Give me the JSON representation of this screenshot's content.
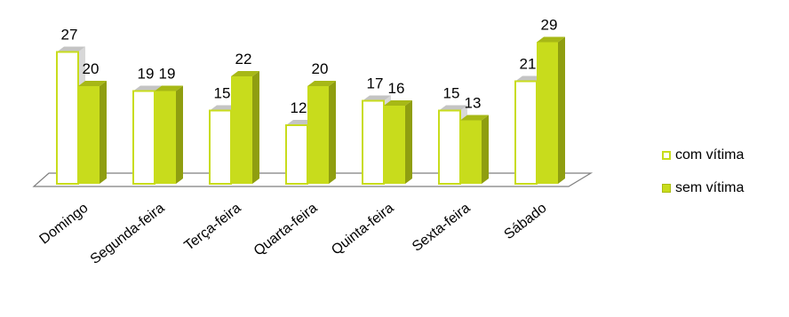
{
  "chart_data": {
    "type": "bar",
    "title": "",
    "xlabel": "",
    "ylabel": "",
    "ylim": [
      0,
      30
    ],
    "categories": [
      "Domingo",
      "Segunda-feira",
      "Terça-feira",
      "Quarta-feira",
      "Quinta-feira",
      "Sexta-feira",
      "Sábado"
    ],
    "series": [
      {
        "name": "com vítima",
        "values": [
          27,
          19,
          15,
          12,
          17,
          15,
          21
        ]
      },
      {
        "name": "sem vítima",
        "values": [
          20,
          19,
          22,
          20,
          16,
          13,
          29
        ]
      }
    ],
    "grid": false,
    "legend_position": "right",
    "colors": {
      "com_front": "#ffffff",
      "com_border": "#c8dc1c",
      "sem_front": "#c8dc1c",
      "sem_side": "#8f9e10",
      "sem_top": "#a7b816",
      "com_side": "#d8d8d8",
      "com_top": "#c4c4c4",
      "floor": "#7f7f7f"
    }
  },
  "legend": {
    "items": [
      "com vítima",
      "sem vítima"
    ]
  }
}
